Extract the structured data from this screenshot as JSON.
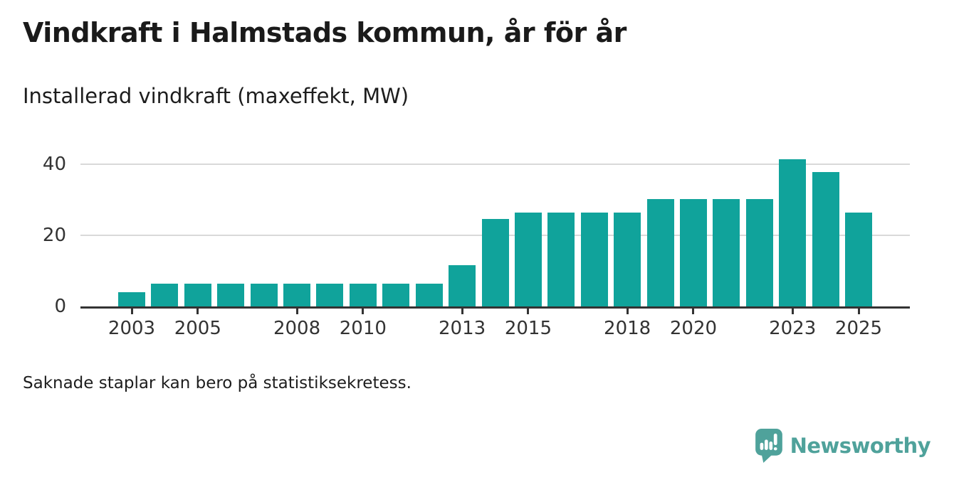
{
  "page": {
    "title": "Vindkraft i Halmstads kommun, år för år",
    "subtitle": "Installerad vindkraft (maxeffekt, MW)",
    "footnote": "Saknade staplar kan bero på statistiksekretess.",
    "brand": {
      "name": "Newsworthy",
      "logo_icon": "newsworthy-speech-bubble-bar-chart-icon",
      "color": "#4FA29B"
    }
  },
  "chart_data": {
    "type": "bar",
    "title": "Vindkraft i Halmstads kommun, år för år",
    "subtitle": "Installerad vindkraft (maxeffekt, MW)",
    "unit": "MW",
    "categories": [
      "2003",
      "2004",
      "2005",
      "2006",
      "2007",
      "2008",
      "2009",
      "2010",
      "2011",
      "2012",
      "2013",
      "2014",
      "2015",
      "2016",
      "2017",
      "2018",
      "2019",
      "2020",
      "2021",
      "2022",
      "2023",
      "2024",
      "2025"
    ],
    "values": [
      4,
      6.5,
      6.5,
      6.5,
      6.5,
      6.5,
      6.5,
      6.5,
      6.5,
      6.5,
      11.6,
      24.6,
      26.5,
      26.5,
      26.5,
      26.5,
      30.2,
      30.2,
      30.2,
      30.2,
      41.5,
      37.9,
      26.5
    ],
    "x_tick_labels": [
      "2003",
      "2005",
      "2008",
      "2010",
      "2013",
      "2015",
      "2018",
      "2020",
      "2023",
      "2025"
    ],
    "y_ticks": [
      0,
      20,
      40
    ],
    "ylim": [
      0,
      45.2
    ],
    "bar_color": "#10A39B",
    "axis_color": "#333333",
    "gridline_color": "#D9D9D9",
    "grid": "horizontal",
    "legend": "none"
  }
}
